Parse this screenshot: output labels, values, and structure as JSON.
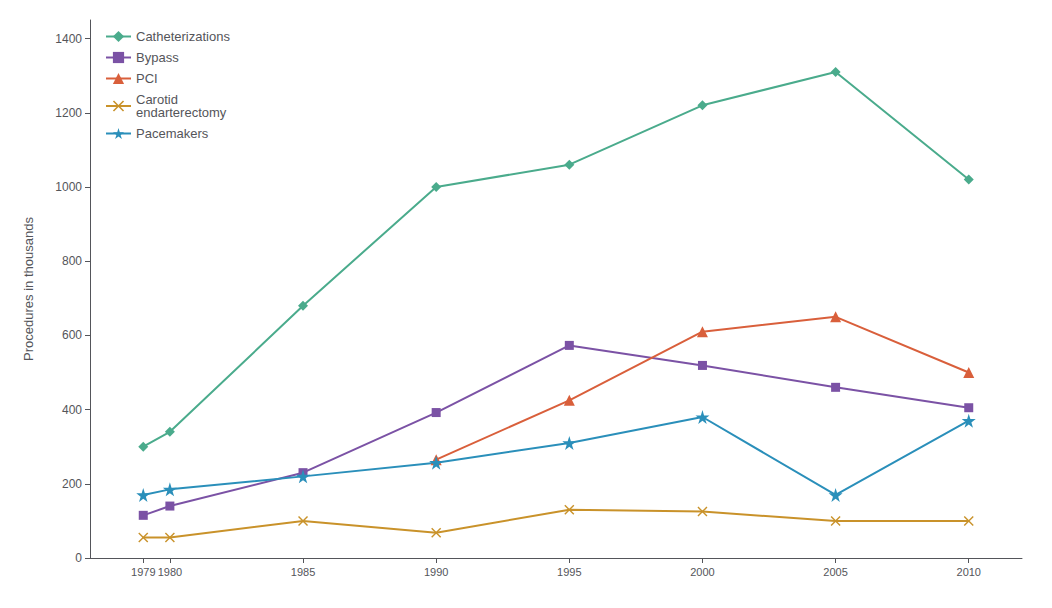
{
  "chart_data": {
    "type": "line",
    "ylabel": "Procedures in thousands",
    "x": [
      1979,
      1980,
      1985,
      1990,
      1995,
      2000,
      2005,
      2010
    ],
    "xlim": [
      1977,
      2012
    ],
    "xticks": [
      1979,
      1980,
      1985,
      1990,
      1995,
      2000,
      2005,
      2010
    ],
    "ylim": [
      0,
      1450
    ],
    "yticks": [
      0,
      200,
      400,
      600,
      800,
      1000,
      1200,
      1400
    ],
    "grid": false,
    "legend": "upper left",
    "series": [
      {
        "name": "Catheterizations",
        "color": "#4aab8c",
        "marker": "diamond",
        "values": [
          300,
          340,
          680,
          1000,
          1060,
          1220,
          1310,
          1020
        ]
      },
      {
        "name": "Bypass",
        "color": "#7b52a5",
        "marker": "square",
        "values": [
          115,
          140,
          230,
          392,
          573,
          519,
          460,
          405
        ]
      },
      {
        "name": "PCI",
        "color": "#d95f3b",
        "marker": "triangle",
        "values": [
          null,
          null,
          null,
          265,
          425,
          610,
          650,
          500
        ]
      },
      {
        "name": "Carotid\nendarterectomy",
        "color": "#c9922a",
        "marker": "x",
        "values": [
          55,
          55,
          100,
          68,
          130,
          125,
          100,
          100
        ]
      },
      {
        "name": "Pacemakers",
        "color": "#2a8fba",
        "marker": "star",
        "values": [
          170,
          185,
          220,
          257,
          310,
          380,
          170,
          370
        ]
      }
    ]
  }
}
